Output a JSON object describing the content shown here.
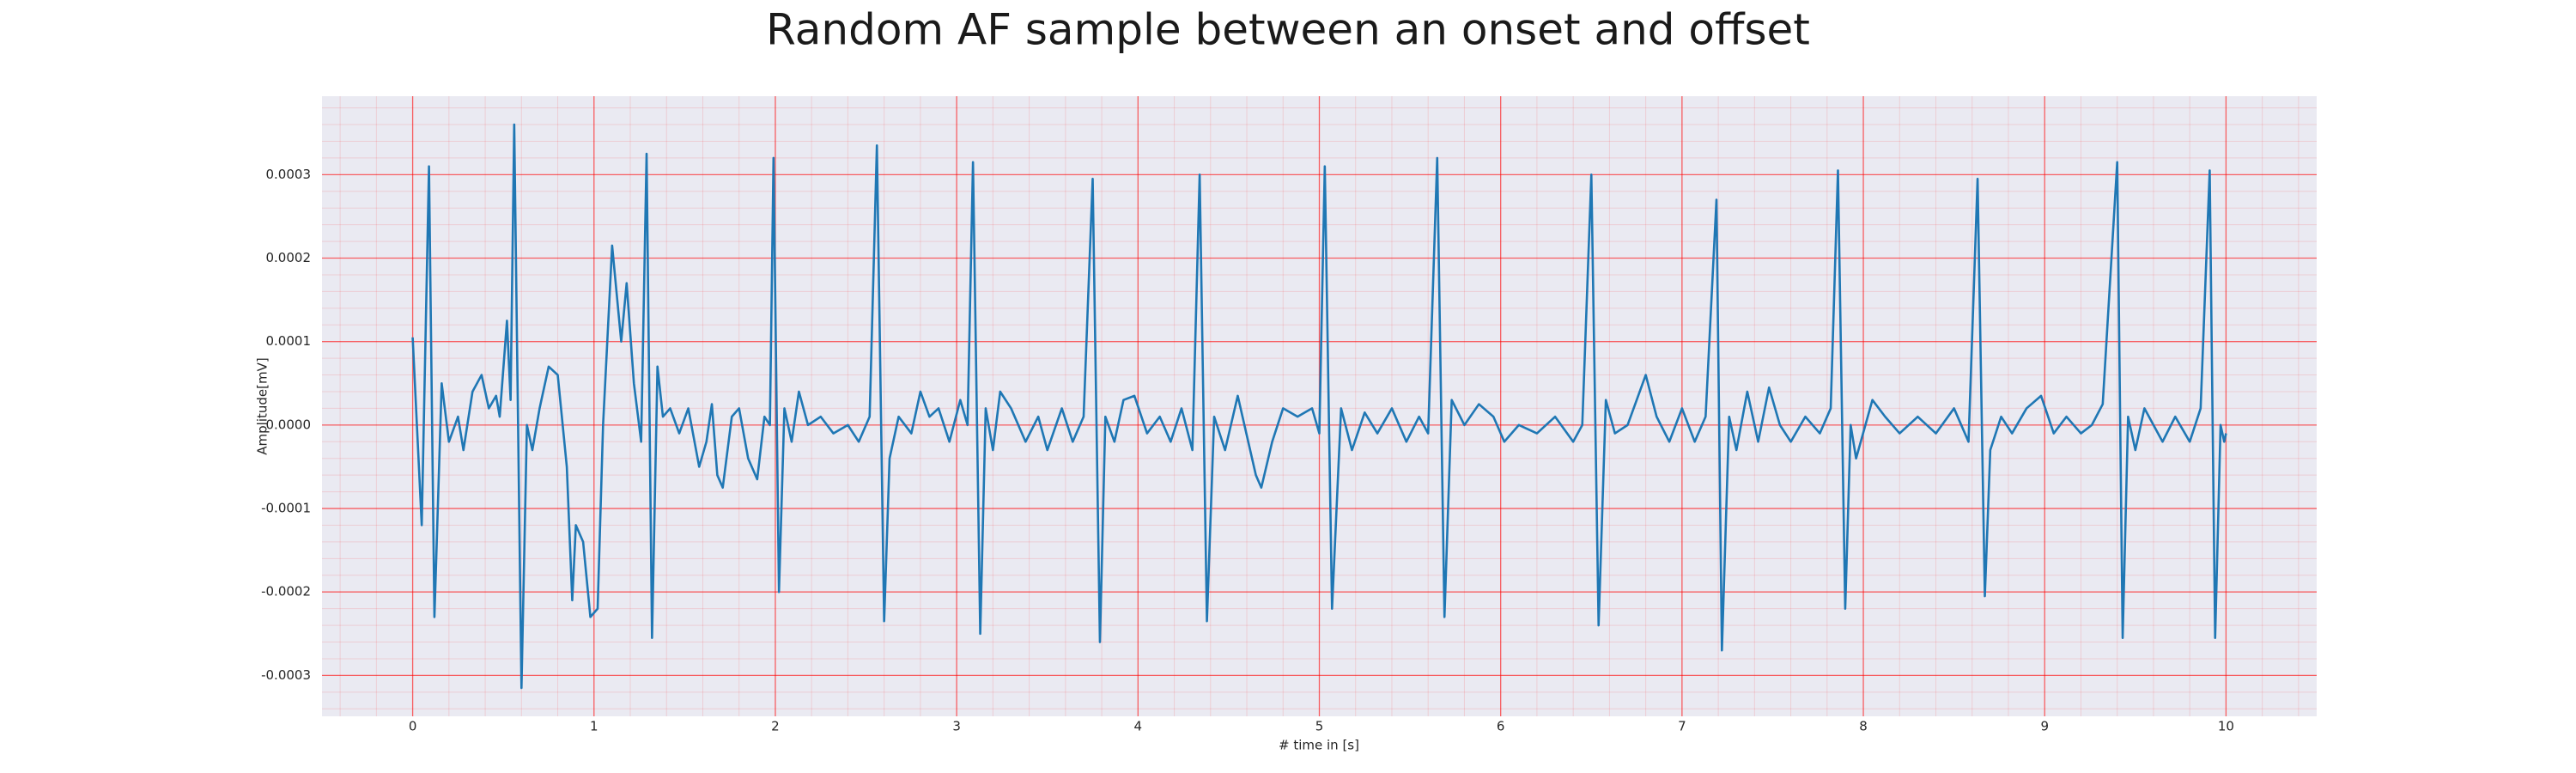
{
  "chart_data": {
    "type": "line",
    "title": "Random AF sample between an onset and offset",
    "xlabel": "# time in [s]",
    "ylabel": "Amplitude[mV]",
    "color": "#1f77b4",
    "grid": true,
    "minor_grid": true,
    "grid_color": "#ff0000",
    "background": "#eaeaf2",
    "xlim": [
      -0.5,
      10.5
    ],
    "ylim": [
      -0.000349,
      0.000394
    ],
    "xticks": [
      0,
      1,
      2,
      3,
      4,
      5,
      6,
      7,
      8,
      9,
      10
    ],
    "yticks": [
      -0.0003,
      -0.0002,
      -0.0001,
      {
        "value": 0,
        "label": "0.0000"
      },
      0.0001,
      0.0002,
      0.0003
    ],
    "x": [
      0,
      0.05,
      0.09,
      0.12,
      0.16,
      0.2,
      0.25,
      0.28,
      0.33,
      0.38,
      0.42,
      0.46,
      0.48,
      0.52,
      0.54,
      0.56,
      0.6,
      0.63,
      0.66,
      0.7,
      0.75,
      0.8,
      0.85,
      0.88,
      0.9,
      0.94,
      0.98,
      1.02,
      1.05,
      1.1,
      1.15,
      1.18,
      1.22,
      1.26,
      1.29,
      1.32,
      1.35,
      1.38,
      1.42,
      1.47,
      1.52,
      1.58,
      1.62,
      1.65,
      1.68,
      1.71,
      1.76,
      1.8,
      1.85,
      1.9,
      1.94,
      1.97,
      1.99,
      2.02,
      2.05,
      2.09,
      2.13,
      2.18,
      2.25,
      2.32,
      2.4,
      2.46,
      2.52,
      2.56,
      2.6,
      2.63,
      2.68,
      2.75,
      2.8,
      2.85,
      2.9,
      2.96,
      3.02,
      3.06,
      3.09,
      3.13,
      3.16,
      3.2,
      3.24,
      3.3,
      3.38,
      3.45,
      3.5,
      3.58,
      3.64,
      3.7,
      3.75,
      3.79,
      3.82,
      3.87,
      3.92,
      3.98,
      4.05,
      4.12,
      4.18,
      4.24,
      4.3,
      4.34,
      4.38,
      4.42,
      4.48,
      4.55,
      4.65,
      4.68,
      4.74,
      4.8,
      4.88,
      4.96,
      5.0,
      5.03,
      5.07,
      5.12,
      5.18,
      5.25,
      5.32,
      5.4,
      5.48,
      5.55,
      5.6,
      5.65,
      5.69,
      5.73,
      5.8,
      5.88,
      5.96,
      6.02,
      6.1,
      6.2,
      6.3,
      6.4,
      6.45,
      6.5,
      6.54,
      6.58,
      6.63,
      6.7,
      6.8,
      6.86,
      6.93,
      7.0,
      7.07,
      7.13,
      7.19,
      7.22,
      7.26,
      7.3,
      7.36,
      7.42,
      7.48,
      7.54,
      7.6,
      7.68,
      7.76,
      7.82,
      7.86,
      7.9,
      7.93,
      7.96,
      8.05,
      8.12,
      8.2,
      8.3,
      8.4,
      8.5,
      8.58,
      8.63,
      8.67,
      8.7,
      8.76,
      8.82,
      8.9,
      8.98,
      9.05,
      9.12,
      9.2,
      9.26,
      9.32,
      9.4,
      9.43,
      9.46,
      9.5,
      9.55,
      9.65,
      9.72,
      9.8,
      9.86,
      9.91,
      9.94,
      9.97,
      9.99,
      10.0
    ],
    "values": [
      0.000105,
      -0.00012,
      0.00031,
      -0.00023,
      5e-05,
      -2e-05,
      1e-05,
      -3e-05,
      4e-05,
      6e-05,
      2e-05,
      3.5e-05,
      1e-05,
      0.000125,
      3e-05,
      0.00036,
      -0.000315,
      0,
      -3e-05,
      2e-05,
      7e-05,
      6e-05,
      -5e-05,
      -0.00021,
      -0.00012,
      -0.00014,
      -0.00023,
      -0.00022,
      0,
      0.000215,
      0.0001,
      0.00017,
      5e-05,
      -2e-05,
      0.000325,
      -0.000255,
      7e-05,
      1e-05,
      2e-05,
      -1e-05,
      2e-05,
      -5e-05,
      -2e-05,
      2.5e-05,
      -6e-05,
      -7.5e-05,
      1e-05,
      2e-05,
      -4e-05,
      -6.5e-05,
      1e-05,
      0,
      0.00032,
      -0.0002,
      2e-05,
      -2e-05,
      4e-05,
      0,
      1e-05,
      -1e-05,
      0,
      -2e-05,
      1e-05,
      0.000335,
      -0.000235,
      -4e-05,
      1e-05,
      -1e-05,
      4e-05,
      1e-05,
      2e-05,
      -2e-05,
      3e-05,
      0,
      0.000315,
      -0.00025,
      2e-05,
      -3e-05,
      4e-05,
      2e-05,
      -2e-05,
      1e-05,
      -3e-05,
      2e-05,
      -2e-05,
      1e-05,
      0.000295,
      -0.00026,
      1e-05,
      -2e-05,
      3e-05,
      3.5e-05,
      -1e-05,
      1e-05,
      -2e-05,
      2e-05,
      -3e-05,
      0.0003,
      -0.000235,
      1e-05,
      -3e-05,
      3.5e-05,
      -6e-05,
      -7.5e-05,
      -2e-05,
      2e-05,
      1e-05,
      2e-05,
      -1e-05,
      0.00031,
      -0.00022,
      2e-05,
      -3e-05,
      1.5e-05,
      -1e-05,
      2e-05,
      -2e-05,
      1e-05,
      -1e-05,
      0.00032,
      -0.00023,
      3e-05,
      0,
      2.5e-05,
      1e-05,
      -2e-05,
      0,
      -1e-05,
      1e-05,
      -2e-05,
      0,
      0.0003,
      -0.00024,
      3e-05,
      -1e-05,
      0,
      6e-05,
      1e-05,
      -2e-05,
      2e-05,
      -2e-05,
      1e-05,
      0.00027,
      -0.00027,
      1e-05,
      -3e-05,
      4e-05,
      -2e-05,
      4.5e-05,
      0,
      -2e-05,
      1e-05,
      -1e-05,
      2e-05,
      0.000305,
      -0.00022,
      0,
      -4e-05,
      3e-05,
      1e-05,
      -1e-05,
      1e-05,
      -1e-05,
      2e-05,
      -2e-05,
      0.000295,
      -0.000205,
      -3e-05,
      1e-05,
      -1e-05,
      2e-05,
      3.5e-05,
      -1e-05,
      1e-05,
      -1e-05,
      0,
      2.5e-05,
      0.000315,
      -0.000255,
      1e-05,
      -3e-05,
      2e-05,
      -2e-05,
      1e-05,
      -2e-05,
      2e-05,
      0.000305,
      -0.000255,
      0,
      -2e-05,
      -1e-05
    ]
  }
}
